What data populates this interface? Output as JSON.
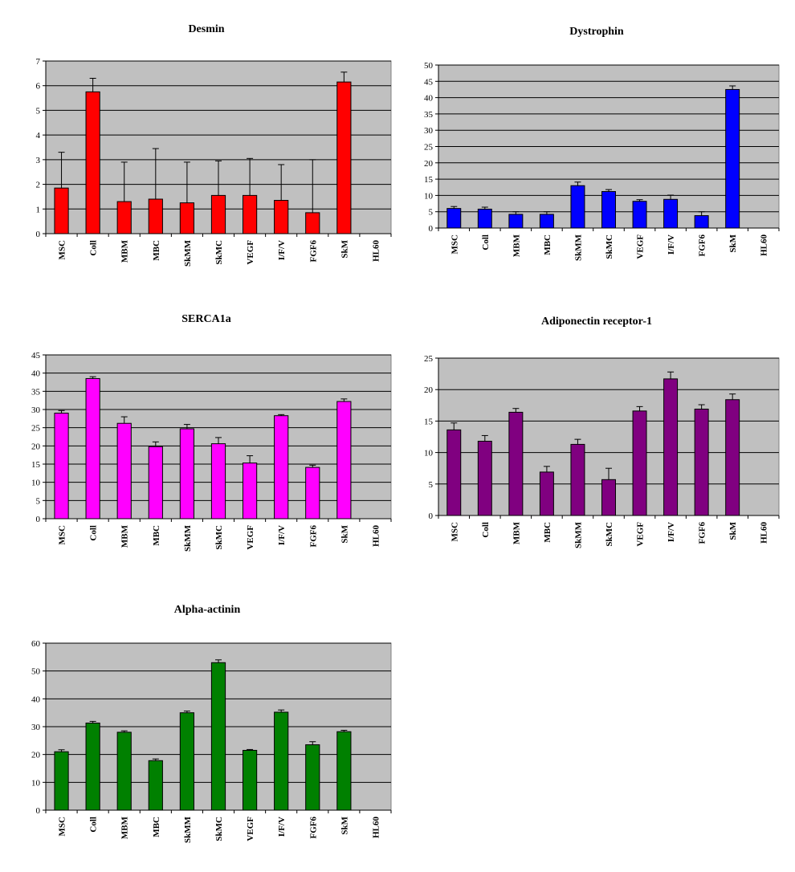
{
  "chart_data": [
    {
      "type": "bar",
      "title": "Desmin",
      "categories": [
        "MSC",
        "Coll",
        "MBM",
        "MBC",
        "SkMM",
        "SkMC",
        "VEGF",
        "I/F/V",
        "FGF6",
        "SkM",
        "HL60"
      ],
      "values": [
        1.85,
        5.75,
        1.3,
        1.4,
        1.25,
        1.55,
        1.55,
        1.35,
        0.85,
        6.15,
        0
      ],
      "errors": [
        1.45,
        0.55,
        1.6,
        2.05,
        1.65,
        1.4,
        1.5,
        1.45,
        2.15,
        0.4,
        0
      ],
      "ylim": [
        0,
        7
      ],
      "yticks": [
        0,
        1,
        2,
        3,
        4,
        5,
        6,
        7
      ],
      "color": "#ff0000",
      "grid": true
    },
    {
      "type": "bar",
      "title": "Dystrophin",
      "categories": [
        "MSC",
        "Coll",
        "MBM",
        "MBC",
        "SkMM",
        "SkMC",
        "VEGF",
        "I/F/V",
        "FGF6",
        "SkM",
        "HL60"
      ],
      "values": [
        6.0,
        5.8,
        4.2,
        4.2,
        13.0,
        11.2,
        8.2,
        8.8,
        3.8,
        42.5,
        0
      ],
      "errors": [
        0.6,
        0.6,
        0.8,
        0.8,
        1.1,
        0.6,
        0.5,
        1.3,
        1.2,
        1.1,
        0
      ],
      "ylim": [
        0,
        50
      ],
      "yticks": [
        0,
        5,
        10,
        15,
        20,
        25,
        30,
        35,
        40,
        45,
        50
      ],
      "color": "#0000ff",
      "grid": true
    },
    {
      "type": "bar",
      "title": "SERCA1a",
      "categories": [
        "MSC",
        "Coll",
        "MBM",
        "MBC",
        "SkMM",
        "SkMC",
        "VEGF",
        "I/F/V",
        "FGF6",
        "SkM",
        "HL60"
      ],
      "values": [
        29.0,
        38.5,
        26.2,
        19.8,
        24.7,
        20.6,
        15.3,
        28.3,
        14.1,
        32.2,
        0
      ],
      "errors": [
        0.7,
        0.5,
        1.8,
        1.3,
        1.2,
        1.7,
        2.0,
        0.3,
        0.6,
        0.7,
        0
      ],
      "ylim": [
        0,
        45
      ],
      "yticks": [
        0,
        5,
        10,
        15,
        20,
        25,
        30,
        35,
        40,
        45
      ],
      "color": "#ff00ff",
      "grid": true
    },
    {
      "type": "bar",
      "title": "Adiponectin receptor-1",
      "categories": [
        "MSC",
        "Coll",
        "MBM",
        "MBC",
        "SkMM",
        "SkMC",
        "VEGF",
        "I/F/V",
        "FGF6",
        "SkM",
        "HL60"
      ],
      "values": [
        13.6,
        11.8,
        16.4,
        6.9,
        11.3,
        5.7,
        16.6,
        21.7,
        16.9,
        18.4,
        0
      ],
      "errors": [
        1.1,
        0.9,
        0.6,
        0.9,
        0.8,
        1.8,
        0.7,
        1.1,
        0.7,
        0.9,
        0
      ],
      "ylim": [
        0,
        25
      ],
      "yticks": [
        0,
        5,
        10,
        15,
        20,
        25
      ],
      "color": "#800080",
      "grid": true
    },
    {
      "type": "bar",
      "title": "Alpha-actinin",
      "categories": [
        "MSC",
        "Coll",
        "MBM",
        "MBC",
        "SkMM",
        "SkMC",
        "VEGF",
        "I/F/V",
        "FGF6",
        "SkM",
        "HL60"
      ],
      "values": [
        21.0,
        31.3,
        28.0,
        17.8,
        35.0,
        53.0,
        21.5,
        35.2,
        23.5,
        28.2,
        0
      ],
      "errors": [
        0.7,
        0.6,
        0.5,
        0.6,
        0.6,
        1.0,
        0.3,
        0.8,
        1.1,
        0.5,
        0
      ],
      "ylim": [
        0,
        60
      ],
      "yticks": [
        0,
        10,
        20,
        30,
        40,
        50,
        60
      ],
      "color": "#008000",
      "grid": true
    }
  ]
}
